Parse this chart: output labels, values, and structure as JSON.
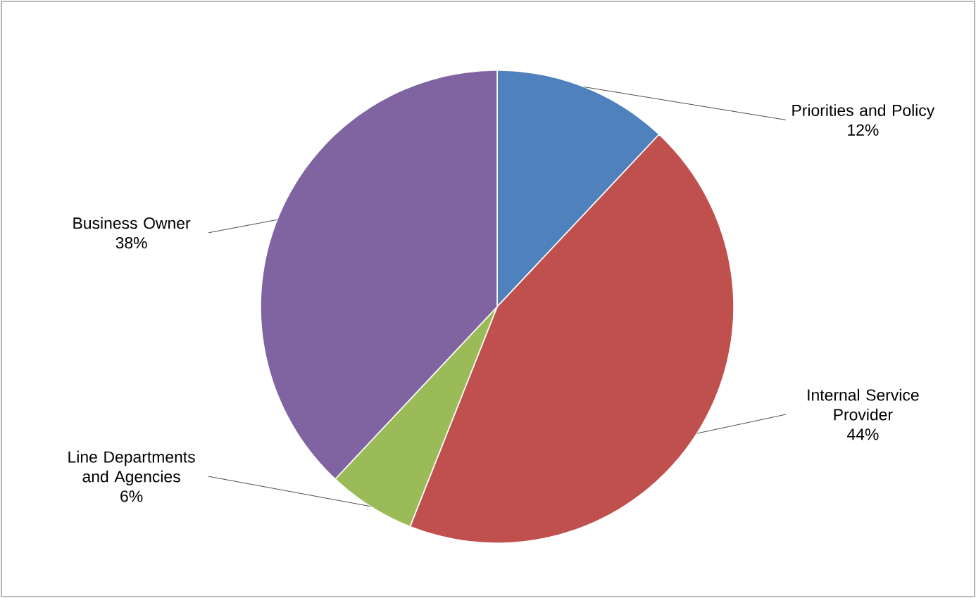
{
  "chart_data": {
    "type": "pie",
    "categories": [
      "Priorities and Policy",
      "Internal Service Provider",
      "Line Departments and Agencies",
      "Business Owner"
    ],
    "values": [
      12,
      44,
      6,
      38
    ],
    "value_labels": [
      "12%",
      "44%",
      "6%",
      "38%"
    ],
    "colors": [
      "#4f81bd",
      "#c0504d",
      "#9bbb59",
      "#8064a2"
    ]
  }
}
